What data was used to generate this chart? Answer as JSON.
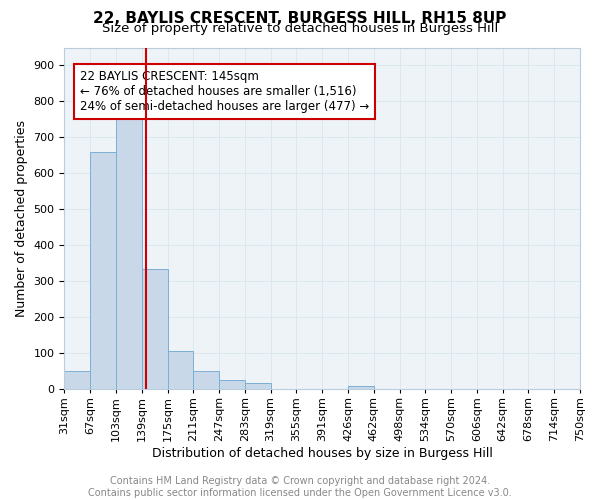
{
  "title1": "22, BAYLIS CRESCENT, BURGESS HILL, RH15 8UP",
  "title2": "Size of property relative to detached houses in Burgess Hill",
  "xlabel": "Distribution of detached houses by size in Burgess Hill",
  "ylabel": "Number of detached properties",
  "tick_labels": [
    "31sqm",
    "67sqm",
    "103sqm",
    "139sqm",
    "175sqm",
    "211sqm",
    "247sqm",
    "283sqm",
    "319sqm",
    "355sqm",
    "391sqm",
    "426sqm",
    "462sqm",
    "498sqm",
    "534sqm",
    "570sqm",
    "606sqm",
    "642sqm",
    "678sqm",
    "714sqm",
    "750sqm"
  ],
  "values": [
    50,
    660,
    750,
    335,
    107,
    50,
    25,
    17,
    0,
    0,
    0,
    10,
    0,
    0,
    0,
    0,
    0,
    0,
    0,
    0
  ],
  "bar_color": "#c8d8e8",
  "bar_edge_color": "#7bafd4",
  "property_line_x": 2.67,
  "property_line_color": "#cc0000",
  "annotation_text": "22 BAYLIS CRESCENT: 145sqm\n← 76% of detached houses are smaller (1,516)\n24% of semi-detached houses are larger (477) →",
  "annotation_box_color": "#cc0000",
  "ylim": [
    0,
    950
  ],
  "yticks": [
    0,
    100,
    200,
    300,
    400,
    500,
    600,
    700,
    800,
    900
  ],
  "grid_color": "#dce8f0",
  "background_color": "#eef3f8",
  "footer_text": "Contains HM Land Registry data © Crown copyright and database right 2024.\nContains public sector information licensed under the Open Government Licence v3.0.",
  "title1_fontsize": 11,
  "title2_fontsize": 9.5,
  "xlabel_fontsize": 9,
  "ylabel_fontsize": 9,
  "tick_fontsize": 8,
  "annotation_fontsize": 8.5,
  "footer_fontsize": 7
}
